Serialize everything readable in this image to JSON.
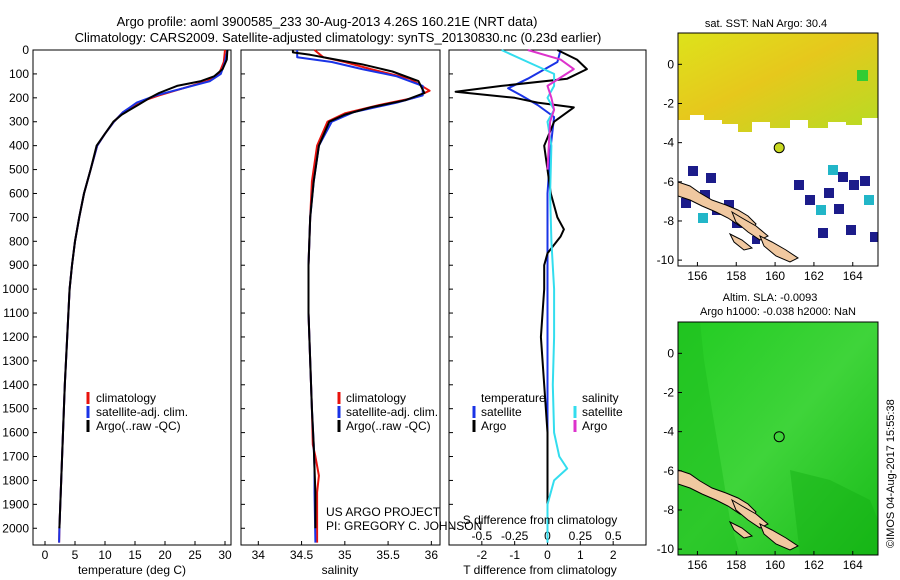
{
  "header": {
    "line1": "Argo profile: aoml 3900585_233 30-Aug-2013 4.26S 160.21E (NRT data)",
    "line2": "Climatology: CARS2009. Satellite-adjusted climatology: synTS_20130830.nc (0.23d earlier)"
  },
  "project_note": {
    "line1": "US ARGO PROJECT",
    "line2": "PI: GREGORY C. JOHNSON"
  },
  "stamp": "©IMOS 04-Aug-2017 15:55:38",
  "colors": {
    "climatology": "#e8120c",
    "satellite": "#1a33e6",
    "argo": "#000000",
    "t_satellite": "#1a33e6",
    "s_satellite": "#33ddee",
    "s_argo": "#dd33cc",
    "land": "#f0c8a0",
    "sst_warm": "#d8e21a",
    "sla_green": "#2ecc2e"
  },
  "chart_data": [
    {
      "id": "temperature",
      "type": "line",
      "xlabel": "temperature (deg C)",
      "ylabel": "",
      "xlim": [
        -2,
        31
      ],
      "ylim": [
        2070,
        0
      ],
      "xticks": [
        0,
        5,
        10,
        15,
        20,
        25,
        30
      ],
      "yticks": [
        0,
        100,
        200,
        300,
        400,
        500,
        600,
        700,
        800,
        900,
        1000,
        1100,
        1200,
        1300,
        1400,
        1500,
        1600,
        1700,
        1800,
        1900,
        2000
      ],
      "legend": [
        "climatology",
        "satellite-adj. clim.",
        "Argo(..raw -QC)"
      ],
      "series": [
        {
          "name": "climatology",
          "color_key": "climatology",
          "points": [
            [
              30.0,
              0
            ],
            [
              29.8,
              50
            ],
            [
              29.0,
              100
            ],
            [
              27.0,
              130
            ],
            [
              23.0,
              160
            ],
            [
              19.0,
              190
            ],
            [
              15.5,
              220
            ],
            [
              13.0,
              260
            ],
            [
              11.5,
              300
            ],
            [
              10.0,
              350
            ],
            [
              8.7,
              400
            ],
            [
              7.6,
              500
            ],
            [
              6.5,
              600
            ],
            [
              5.7,
              700
            ],
            [
              5.0,
              800
            ],
            [
              4.5,
              900
            ],
            [
              4.1,
              1000
            ],
            [
              3.7,
              1200
            ],
            [
              3.3,
              1400
            ],
            [
              3.0,
              1600
            ],
            [
              2.7,
              1800
            ],
            [
              2.4,
              2000
            ],
            [
              2.35,
              2060
            ]
          ]
        },
        {
          "name": "satellite-adj. clim.",
          "color_key": "satellite",
          "points": [
            [
              30.4,
              0
            ],
            [
              30.0,
              50
            ],
            [
              29.3,
              100
            ],
            [
              27.5,
              130
            ],
            [
              23.0,
              160
            ],
            [
              18.5,
              190
            ],
            [
              15.3,
              220
            ],
            [
              13.0,
              260
            ],
            [
              11.5,
              300
            ],
            [
              10.0,
              350
            ],
            [
              8.7,
              400
            ],
            [
              7.6,
              500
            ],
            [
              6.5,
              600
            ],
            [
              5.7,
              700
            ],
            [
              5.0,
              800
            ],
            [
              4.5,
              900
            ],
            [
              4.1,
              1000
            ],
            [
              3.7,
              1200
            ],
            [
              3.3,
              1400
            ],
            [
              3.0,
              1600
            ],
            [
              2.7,
              1800
            ],
            [
              2.4,
              2000
            ],
            [
              2.35,
              2060
            ]
          ]
        },
        {
          "name": "Argo(..raw -QC)",
          "color_key": "argo",
          "points": [
            [
              30.4,
              0
            ],
            [
              30.3,
              40
            ],
            [
              29.6,
              80
            ],
            [
              28.2,
              110
            ],
            [
              26.0,
              130
            ],
            [
              22.0,
              150
            ],
            [
              19.0,
              180
            ],
            [
              17.5,
              200
            ],
            [
              15.5,
              230
            ],
            [
              12.8,
              270
            ],
            [
              11.4,
              300
            ],
            [
              10.0,
              350
            ],
            [
              8.6,
              400
            ],
            [
              7.6,
              500
            ],
            [
              6.5,
              600
            ],
            [
              5.7,
              700
            ],
            [
              5.0,
              800
            ],
            [
              4.5,
              900
            ],
            [
              4.1,
              1000
            ],
            [
              3.7,
              1200
            ],
            [
              3.3,
              1400
            ],
            [
              3.0,
              1600
            ],
            [
              2.7,
              1800
            ],
            [
              2.4,
              2000
            ]
          ]
        }
      ]
    },
    {
      "id": "salinity",
      "type": "line",
      "xlabel": "salinity",
      "ylabel": "",
      "xlim": [
        33.8,
        36.1
      ],
      "ylim": [
        2070,
        0
      ],
      "xticks": [
        34,
        34.5,
        35,
        35.5,
        36
      ],
      "legend": [
        "climatology",
        "satellite-adj. clim.",
        "Argo(..raw -QC)"
      ],
      "series": [
        {
          "name": "climatology",
          "color_key": "climatology",
          "points": [
            [
              34.65,
              0
            ],
            [
              34.75,
              30
            ],
            [
              35.0,
              50
            ],
            [
              35.3,
              80
            ],
            [
              35.75,
              120
            ],
            [
              35.98,
              170
            ],
            [
              35.8,
              200
            ],
            [
              35.4,
              230
            ],
            [
              35.0,
              265
            ],
            [
              34.8,
              300
            ],
            [
              34.68,
              400
            ],
            [
              34.62,
              550
            ],
            [
              34.6,
              700
            ],
            [
              34.58,
              900
            ],
            [
              34.58,
              1100
            ],
            [
              34.6,
              1300
            ],
            [
              34.62,
              1500
            ],
            [
              34.63,
              1650
            ],
            [
              34.66,
              1700
            ],
            [
              34.7,
              1780
            ],
            [
              34.68,
              1850
            ],
            [
              34.68,
              2060
            ]
          ]
        },
        {
          "name": "satellite-adj. clim.",
          "color_key": "satellite",
          "points": [
            [
              34.45,
              0
            ],
            [
              34.45,
              30
            ],
            [
              34.85,
              50
            ],
            [
              35.2,
              80
            ],
            [
              35.6,
              110
            ],
            [
              35.9,
              150
            ],
            [
              35.9,
              190
            ],
            [
              35.6,
              220
            ],
            [
              35.1,
              260
            ],
            [
              34.85,
              300
            ],
            [
              34.7,
              400
            ],
            [
              34.64,
              550
            ],
            [
              34.6,
              700
            ],
            [
              34.58,
              900
            ],
            [
              34.58,
              1100
            ],
            [
              34.6,
              1300
            ],
            [
              34.62,
              1500
            ],
            [
              34.64,
              1650
            ],
            [
              34.65,
              1750
            ],
            [
              34.65,
              1850
            ],
            [
              34.66,
              2060
            ]
          ]
        },
        {
          "name": "Argo(..raw -QC)",
          "color_key": "argo",
          "points": [
            [
              34.4,
              0
            ],
            [
              34.4,
              10
            ],
            [
              34.6,
              20
            ],
            [
              34.9,
              40
            ],
            [
              35.2,
              60
            ],
            [
              35.55,
              90
            ],
            [
              35.85,
              130
            ],
            [
              35.92,
              180
            ],
            [
              35.7,
              210
            ],
            [
              35.3,
              240
            ],
            [
              35.0,
              270
            ],
            [
              34.82,
              300
            ],
            [
              34.7,
              400
            ],
            [
              34.64,
              550
            ],
            [
              34.6,
              700
            ],
            [
              34.58,
              900
            ],
            [
              34.58,
              1100
            ],
            [
              34.6,
              1300
            ],
            [
              34.62,
              1500
            ],
            [
              34.64,
              1650
            ],
            [
              34.65,
              1750
            ],
            [
              34.66,
              1850
            ],
            [
              34.66,
              2000
            ]
          ]
        }
      ]
    },
    {
      "id": "difference",
      "type": "line",
      "xlabel": "T difference from climatology",
      "ylabel": "",
      "top_axis_label": "S difference from climatology",
      "xlim": [
        -3.0,
        3.0
      ],
      "ylim": [
        2070,
        0
      ],
      "xticks": [
        -2,
        -1,
        0,
        1,
        2
      ],
      "s_xticks": [
        -0.5,
        -0.25,
        0,
        0.25,
        0.5
      ],
      "legend_groups": [
        {
          "title": "temperature",
          "items": [
            "satellite",
            "Argo"
          ]
        },
        {
          "title": "salinity",
          "items": [
            "satellite",
            "Argo"
          ]
        }
      ],
      "series": [
        {
          "name": "temperature satellite",
          "color_key": "t_satellite",
          "points": [
            [
              0.4,
              0
            ],
            [
              0.3,
              50
            ],
            [
              -0.6,
              120
            ],
            [
              -1.2,
              160
            ],
            [
              -0.8,
              190
            ],
            [
              -0.3,
              230
            ],
            [
              0.2,
              280
            ],
            [
              0.1,
              400
            ],
            [
              0.0,
              600
            ],
            [
              0.0,
              800
            ],
            [
              0.0,
              1000
            ],
            [
              0.0,
              1300
            ],
            [
              0.0,
              1600
            ],
            [
              0.0,
              1800
            ],
            [
              0.0,
              2060
            ]
          ]
        },
        {
          "name": "temperature Argo",
          "color_key": "argo",
          "points": [
            [
              0.3,
              0
            ],
            [
              0.9,
              40
            ],
            [
              1.2,
              80
            ],
            [
              0.6,
              120
            ],
            [
              -1.4,
              150
            ],
            [
              -2.8,
              175
            ],
            [
              -1.0,
              200
            ],
            [
              -0.3,
              220
            ],
            [
              0.8,
              240
            ],
            [
              0.2,
              300
            ],
            [
              -0.1,
              400
            ],
            [
              0.0,
              500
            ],
            [
              0.1,
              600
            ],
            [
              0.3,
              700
            ],
            [
              0.5,
              750
            ],
            [
              0.4,
              780
            ],
            [
              0.0,
              850
            ],
            [
              -0.1,
              900
            ],
            [
              -0.1,
              1000
            ],
            [
              -0.2,
              1200
            ],
            [
              -0.1,
              1400
            ],
            [
              0.0,
              1600
            ],
            [
              0.0,
              1800
            ],
            [
              0.0,
              2000
            ]
          ]
        },
        {
          "name": "salinity satellite",
          "color_key": "s_satellite",
          "points": [
            [
              -0.35,
              0
            ],
            [
              -0.15,
              50
            ],
            [
              0.05,
              100
            ],
            [
              0.05,
              150
            ],
            [
              0.0,
              200
            ],
            [
              0.05,
              250
            ],
            [
              0.0,
              300
            ],
            [
              0.03,
              400
            ],
            [
              0.02,
              600
            ],
            [
              0.03,
              800
            ],
            [
              0.05,
              1000
            ],
            [
              0.05,
              1200
            ],
            [
              0.04,
              1400
            ],
            [
              0.05,
              1600
            ],
            [
              0.09,
              1700
            ],
            [
              0.15,
              1750
            ],
            [
              0.05,
              1800
            ],
            [
              0.0,
              1900
            ],
            [
              0.0,
              2060
            ]
          ]
        },
        {
          "name": "salinity Argo",
          "color_key": "s_argo",
          "points": [
            [
              -0.15,
              0
            ],
            [
              0.1,
              40
            ],
            [
              0.2,
              80
            ],
            [
              0.0,
              150
            ],
            [
              0.03,
              200
            ],
            [
              0.05,
              250
            ],
            [
              0.02,
              300
            ],
            [
              0.01,
              400
            ],
            [
              0.0,
              500
            ]
          ]
        }
      ]
    },
    {
      "id": "sst_map",
      "type": "heatmap",
      "title": "sat. SST: NaN Argo: 30.4",
      "xlim": [
        155,
        165.3
      ],
      "ylim": [
        -10.3,
        1.6
      ],
      "xticks": [
        156,
        158,
        160,
        162,
        164
      ],
      "yticks": [
        0,
        -2,
        -4,
        -6,
        -8,
        -10
      ],
      "argo_position": [
        160.21,
        -4.26
      ]
    },
    {
      "id": "sla_map",
      "type": "heatmap",
      "title_line1": "Altim. SLA: -0.0093",
      "title_line2": "Argo h1000: -0.038 h2000: NaN",
      "xlim": [
        155,
        165.3
      ],
      "ylim": [
        -10.3,
        1.6
      ],
      "xticks": [
        156,
        158,
        160,
        162,
        164
      ],
      "yticks": [
        0,
        -2,
        -4,
        -6,
        -8,
        -10
      ],
      "argo_position": [
        160.21,
        -4.26
      ]
    }
  ]
}
